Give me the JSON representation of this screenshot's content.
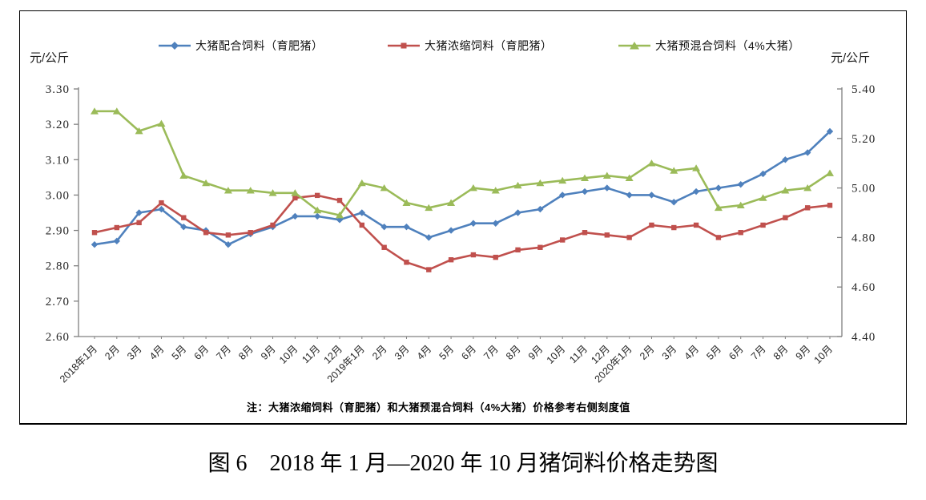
{
  "axes_units": {
    "left": "元/公斤",
    "right": "元/公斤"
  },
  "legend": [
    {
      "label": "大猪配合饲料（育肥猪）",
      "color": "#4F81BD",
      "marker": "diamond"
    },
    {
      "label": "大猪浓缩饲料（育肥猪）",
      "color": "#C0504D",
      "marker": "square"
    },
    {
      "label": "大猪预混合饲料（4%大猪）",
      "color": "#9BBB59",
      "marker": "triangle"
    }
  ],
  "note": "注：大猪浓缩饲料（育肥猪）和大猪预混合饲料（4%大猪）价格参考右侧刻度值",
  "caption": "图 6　2018 年 1 月—2020 年 10 月猪饲料价格走势图",
  "chart_data": {
    "type": "line",
    "title": "2018年1月—2020年10月猪饲料价格走势图",
    "categories": [
      "2018年1月",
      "2月",
      "3月",
      "4月",
      "5月",
      "6月",
      "7月",
      "8月",
      "9月",
      "10月",
      "11月",
      "12月",
      "2019年1月",
      "2月",
      "3月",
      "4月",
      "5月",
      "6月",
      "7月",
      "8月",
      "9月",
      "10月",
      "11月",
      "12月",
      "2020年1月",
      "2月",
      "3月",
      "4月",
      "5月",
      "6月",
      "7月",
      "8月",
      "9月",
      "10月"
    ],
    "series": [
      {
        "name": "大猪配合饲料（育肥猪）",
        "axis": "left",
        "color": "#4F81BD",
        "marker": "diamond",
        "values": [
          2.86,
          2.87,
          2.95,
          2.96,
          2.91,
          2.9,
          2.86,
          2.89,
          2.91,
          2.94,
          2.94,
          2.93,
          2.95,
          2.91,
          2.91,
          2.88,
          2.9,
          2.92,
          2.92,
          2.95,
          2.96,
          3.0,
          3.01,
          3.02,
          3.0,
          3.0,
          2.98,
          3.01,
          3.02,
          3.03,
          3.06,
          3.1,
          3.12,
          3.18
        ]
      },
      {
        "name": "大猪浓缩饲料（育肥猪）",
        "axis": "right",
        "color": "#C0504D",
        "marker": "square",
        "values": [
          4.82,
          4.84,
          4.86,
          4.94,
          4.88,
          4.82,
          4.81,
          4.82,
          4.85,
          4.96,
          4.97,
          4.95,
          4.85,
          4.76,
          4.7,
          4.67,
          4.71,
          4.73,
          4.72,
          4.75,
          4.76,
          4.79,
          4.82,
          4.81,
          4.8,
          4.85,
          4.84,
          4.85,
          4.8,
          4.82,
          4.85,
          4.88,
          4.92,
          4.93
        ]
      },
      {
        "name": "大猪预混合饲料（4%大猪）",
        "axis": "right",
        "color": "#9BBB59",
        "marker": "triangle",
        "values": [
          5.31,
          5.31,
          5.23,
          5.26,
          5.05,
          5.02,
          4.99,
          4.99,
          4.98,
          4.98,
          4.91,
          4.89,
          5.02,
          5.0,
          4.94,
          4.92,
          4.94,
          5.0,
          4.99,
          5.01,
          5.02,
          5.03,
          5.04,
          5.05,
          5.04,
          5.1,
          5.07,
          5.08,
          4.92,
          4.93,
          4.96,
          4.99,
          5.0,
          5.06
        ]
      }
    ],
    "left_axis": {
      "label": "元/公斤",
      "min": 2.6,
      "max": 3.3,
      "step": 0.1,
      "ticks": [
        "3.30",
        "3.20",
        "3.10",
        "3.00",
        "2.90",
        "2.80",
        "2.70",
        "2.60"
      ]
    },
    "right_axis": {
      "label": "元/公斤",
      "min": 4.4,
      "max": 5.4,
      "step": 0.2,
      "ticks": [
        "5.40",
        "5.20",
        "5.00",
        "4.80",
        "4.60",
        "4.40"
      ]
    },
    "grid": false,
    "legend_position": "top",
    "note": "大猪浓缩饲料（育肥猪）和大猪预混合饲料（4%大猪）价格参考右侧刻度值"
  }
}
